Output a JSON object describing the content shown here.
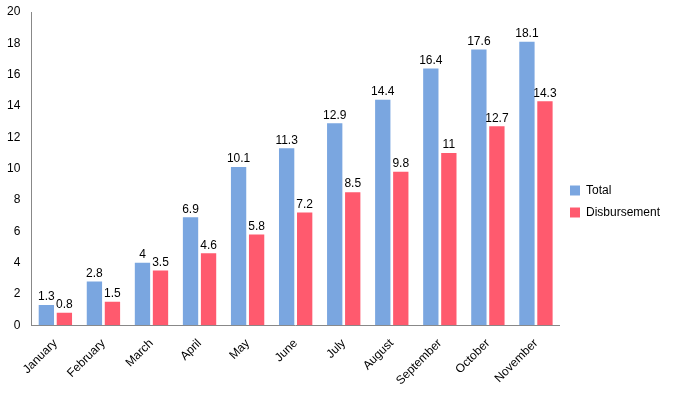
{
  "chart_data": {
    "type": "bar",
    "categories": [
      "January",
      "February",
      "March",
      "April",
      "May",
      "June",
      "July",
      "August",
      "September",
      "October",
      "November"
    ],
    "series": [
      {
        "name": "Total",
        "color": "#7aa6e0",
        "values": [
          1.3,
          2.8,
          4,
          6.9,
          10.1,
          11.3,
          12.9,
          14.4,
          16.4,
          17.6,
          18.1
        ]
      },
      {
        "name": "Disbursement",
        "color": "#ff5a6e",
        "values": [
          0.8,
          1.5,
          3.5,
          4.6,
          5.8,
          7.2,
          8.5,
          9.8,
          11,
          12.7,
          14.3
        ]
      }
    ],
    "ylim": [
      0,
      20
    ],
    "yticks": [
      0,
      2,
      4,
      6,
      8,
      10,
      12,
      14,
      16,
      18,
      20
    ],
    "grid": false,
    "legend": "right",
    "data_labels": true
  }
}
